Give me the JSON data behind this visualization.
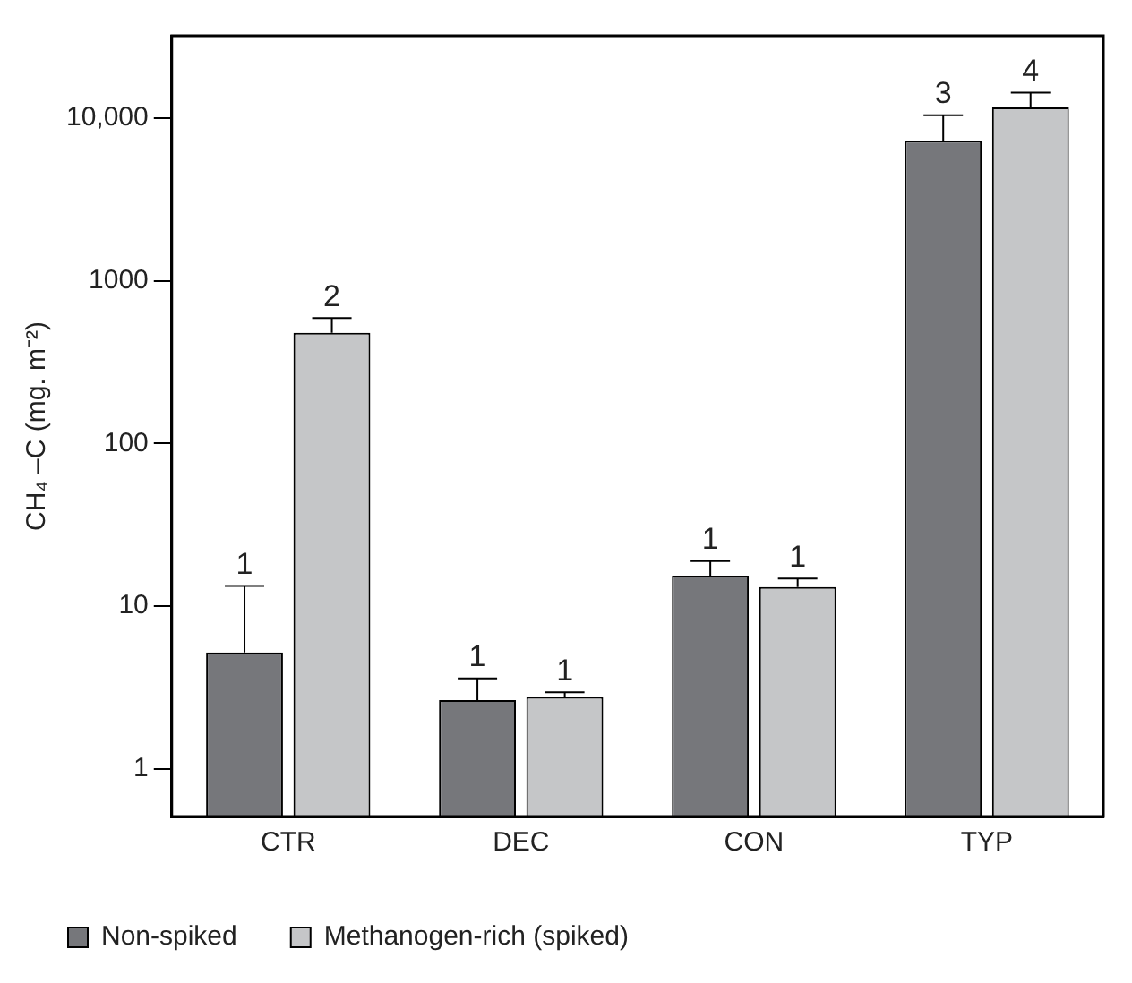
{
  "chart_data": {
    "type": "bar",
    "ylabel": "CH₄ –C (mg. m⁻²)",
    "categories": [
      "CTR",
      "DEC",
      "CON",
      "TYP"
    ],
    "log": "y",
    "ylim": [
      0.51,
      32000
    ],
    "yticks": [
      1,
      10,
      100,
      1000,
      {
        "value": 10000,
        "label": "10,000"
      }
    ],
    "grid": false,
    "legend": "bottom",
    "series": [
      {
        "name": "Non-spiked",
        "color": "#76777b",
        "values": [
          5.2,
          2.65,
          15.4,
          7250
        ],
        "errors": [
          [
            5.2,
            13.3
          ],
          [
            2.65,
            3.6
          ],
          [
            15.4,
            18.9
          ],
          [
            7250,
            10400
          ]
        ]
      },
      {
        "name": "Methanogen-rich (spiked)",
        "color": "#c5c6c8",
        "values": [
          478,
          2.77,
          13.1,
          11600
        ],
        "errors": [
          [
            478,
            589
          ],
          [
            2.77,
            2.96
          ],
          [
            13.1,
            14.8
          ],
          [
            11600,
            14300
          ]
        ]
      }
    ],
    "annotations": [
      {
        "text": "1",
        "x": "CTR",
        "y": 5.2
      },
      {
        "text": "2",
        "x": "CTR",
        "y": 478
      },
      {
        "text": "1",
        "x": "DEC",
        "y": 2.65
      },
      {
        "text": "1",
        "x": "DEC",
        "y": 2.77
      },
      {
        "text": "1",
        "x": "CON",
        "y": 15.4
      },
      {
        "text": "1",
        "x": "CON",
        "y": 13.1
      },
      {
        "text": "3",
        "x": "TYP",
        "y": 7250
      },
      {
        "text": "4",
        "x": "TYP",
        "y": 11600
      }
    ]
  }
}
